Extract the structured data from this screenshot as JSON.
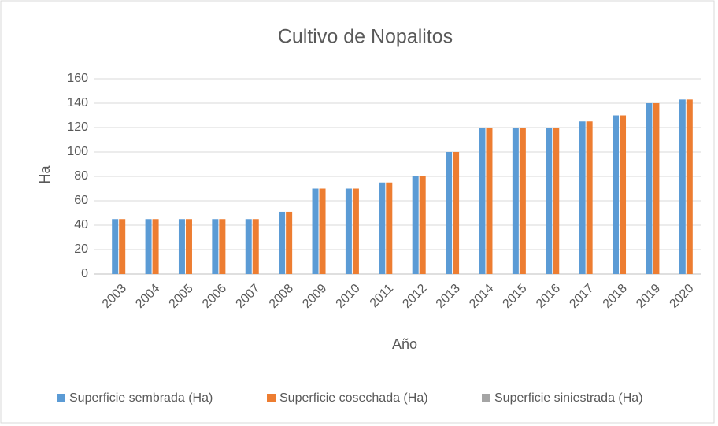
{
  "chart_data": {
    "type": "bar",
    "title": "Cultivo de Nopalitos",
    "x_label": "Año",
    "y_label": "Ha",
    "categories": [
      "2003",
      "2004",
      "2005",
      "2006",
      "2007",
      "2008",
      "2009",
      "2010",
      "2011",
      "2012",
      "2013",
      "2014",
      "2015",
      "2016",
      "2017",
      "2018",
      "2019",
      "2020"
    ],
    "series": [
      {
        "name": "Superficie sembrada (Ha)",
        "color": "#5b9bd5",
        "values": [
          45,
          45,
          45,
          45,
          45,
          51,
          70,
          70,
          75,
          80,
          100,
          120,
          120,
          120,
          125,
          130,
          140,
          143
        ]
      },
      {
        "name": "Superficie cosechada (Ha)",
        "color": "#ed7d31",
        "values": [
          45,
          45,
          45,
          45,
          45,
          51,
          70,
          70,
          75,
          80,
          100,
          120,
          120,
          120,
          125,
          130,
          140,
          143
        ]
      },
      {
        "name": "Superficie siniestrada (Ha)",
        "color": "#a5a5a5",
        "values": [
          0,
          0,
          0,
          0,
          0,
          0,
          0,
          0,
          0,
          0,
          0,
          0,
          0,
          0,
          0,
          0,
          0,
          0
        ]
      }
    ],
    "ylim": [
      0,
      160
    ],
    "yticks": [
      0,
      20,
      40,
      60,
      80,
      100,
      120,
      140,
      160
    ],
    "grid": true,
    "legend": "bottom"
  }
}
